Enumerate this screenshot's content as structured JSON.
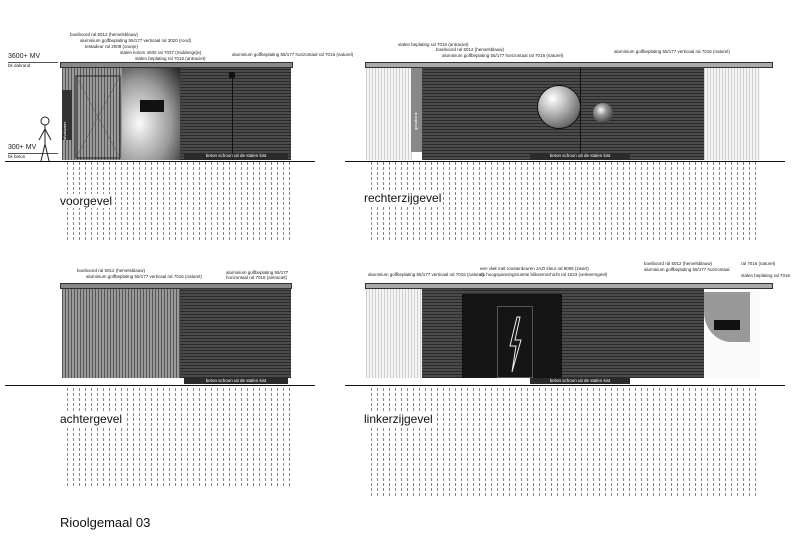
{
  "sheet_title": "Rioolgemaal 03",
  "views": [
    {
      "name": "voorgevel",
      "annotations": [
        "boeiboord ral 5012 (hemelsblauw)",
        "aluminium golfbeplating 55/177 verticaal ral 3020 (rood)",
        "testadeur ral 2008 (oranje)",
        "stalen kolom 4030 ral 7037 (middengrijs)",
        "stalen beplating ral 7016 (antraciet)",
        "aluminium golfbeplating 55/177 horizontaal ral 7016 (naturel)"
      ],
      "foundation": "beton schoon uit de stalen kist",
      "level_top": "3600+",
      "level_top_unit": "MV",
      "level_top_sub": "bk dakrand",
      "level_bottom": "300+",
      "level_bottom_unit": "MV",
      "level_bottom_sub": "bk beton",
      "vertical_text": "afvalwater"
    },
    {
      "name": "rechterzijgevel",
      "annotations": [
        "stalen beplating ral 7016 (antraciet)",
        "boeiboord ral 5012 (hemelsblauw)",
        "aluminium golfbeplating 55/177 horizontaal ral 7016 (naturel)",
        "aluminium golfbeplating 55/177 verticaal ral 7016 (naturel)"
      ],
      "foundation": "beton schoon uit de stalen kist",
      "vertical_text": "grindbank"
    },
    {
      "name": "achtergevel",
      "annotations": [
        "boeiboord ral 5012 (hemelsblauw)",
        "aluminium golfbeplating 55/177 verticaal ral 7016 (naturel)",
        "aluminium golfbeplating 55/177 horizontaal ral 7016 (antraciet)"
      ],
      "foundation": "beton schoon uit de stalen kist"
    },
    {
      "name": "linkerzijgevel",
      "annotations": [
        "aluminium golfbeplating 55/177 verticaal ral 7016 (naturel)",
        "een vlak met roosterdeuren JAZI kleur ral 9005 (zwart)",
        "op hoogspanningsruimte bliksemschicht ral 1023 (verkeersgeel)",
        "boeiboord ral 5012 (hemelsblauw)",
        "aluminium golfbeplating 55/177 horizontaal",
        "ral 7016 (naturel)",
        "stalen beplating ral 7016"
      ],
      "foundation": "beton schoon uit de stalen kist"
    }
  ]
}
